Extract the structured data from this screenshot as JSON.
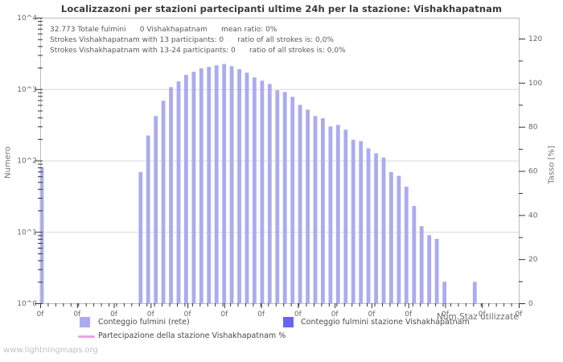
{
  "title": "Localizzazoni per stazioni partecipanti ultime 24h per la stazione: Vishakhapatnam",
  "watermark": "www.lightningmaps.org",
  "annotation": {
    "line1": "32.773 Totale fulmini      0 Vishakhapatnam      mean ratio: 0%",
    "line2": "Strokes Vishakhapatnam with 13 participants: 0      ratio of all strokes is: 0,0%",
    "line3": "Strokes Vishakhapatnam with 13-24 participants: 0      ratio of all strokes is: 0,0%"
  },
  "axes": {
    "y_left_label": "Numero",
    "y_right_label": "Tasso [%]",
    "x_label": "Num.Staz utilizzate",
    "y_left_ticks": [
      "10^4",
      "10^3",
      "10^2",
      "10^1",
      "10^0"
    ],
    "y_right_ticks": [
      120,
      100,
      80,
      60,
      40,
      20,
      0
    ],
    "x_tick_label": "0f"
  },
  "legend": [
    {
      "label": "Conteggio fulmini (rete)",
      "color": "#abacee",
      "type": "square"
    },
    {
      "label": "Conteggio fulmini stazione Vishakhapatnam",
      "color": "#6565f5",
      "type": "square"
    },
    {
      "label": "Partecipazione della stazione Vishakhapatnam %",
      "color": "#f0a2e8",
      "type": "line"
    }
  ],
  "colors": {
    "bar_network": "#abacee",
    "bar_station": "#6565f5",
    "participation_line": "#f0a2e8",
    "gridline": "#d8d8d8",
    "frame": "#bdbdbd",
    "tick": "#333333",
    "tick_label": "#666666"
  },
  "chart_data": {
    "type": "bar",
    "title": "Localizzazoni per stazioni partecipanti ultime 24h per la stazione: Vishakhapatnam",
    "xlabel": "Num.Staz utilizzate",
    "x_slots": 64,
    "x_major_tick_label": "0f",
    "y_axis_left": {
      "label": "Numero",
      "scale": "log",
      "range": [
        1,
        10000
      ],
      "ticks": [
        "10^0",
        "10^1",
        "10^2",
        "10^3",
        "10^4"
      ]
    },
    "y_axis_right": {
      "label": "Tasso [%]",
      "scale": "linear",
      "range": [
        0,
        130
      ],
      "ticks": [
        0,
        20,
        40,
        60,
        80,
        100,
        120
      ]
    },
    "grid": "horizontal-decades",
    "legend_position": "bottom",
    "series": [
      {
        "name": "Conteggio fulmini (rete)",
        "color": "#abacee",
        "values": [
          80,
          0,
          0,
          0,
          0,
          0,
          0,
          0,
          0,
          0,
          0,
          0,
          0,
          69,
          224,
          420,
          688,
          1065,
          1280,
          1580,
          1750,
          1950,
          2050,
          2150,
          2250,
          2100,
          1900,
          1700,
          1460,
          1310,
          1180,
          960,
          910,
          780,
          600,
          515,
          420,
          390,
          300,
          315,
          270,
          196,
          187,
          148,
          126,
          110,
          69,
          61,
          43,
          23,
          12,
          9,
          8,
          2,
          0,
          0,
          0,
          2,
          0,
          0,
          0,
          0,
          0,
          0
        ]
      },
      {
        "name": "Conteggio fulmini stazione Vishakhapatnam",
        "color": "#6565f5",
        "constant_value": 0
      },
      {
        "name": "Partecipazione della stazione Vishakhapatnam %",
        "color": "#f0a2e8",
        "constant_value": 0
      }
    ]
  }
}
